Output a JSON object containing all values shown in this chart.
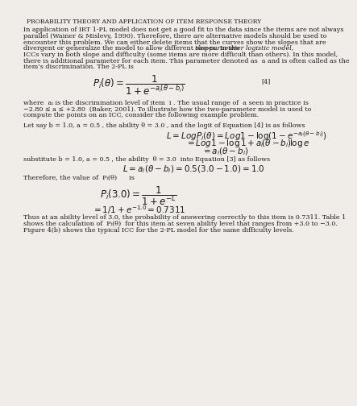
{
  "title": "PROBABILITY THEORY AND APPLICATION OF ITEM RESPONSE THEORY",
  "bg_color": "#f0ede8",
  "text_color": "#1a1a1a",
  "fs_title": 5.5,
  "fs_body": 5.8,
  "fs_eq": 8.5,
  "fs_eq_small": 7.5,
  "lm": 0.055,
  "rm": 0.945,
  "lh": 0.0158,
  "p1_lines": [
    "In application of IRT 1-PL model does not get a good fit to the data since the items are not always",
    "parallel (Wainer & Mislevy, 1990). Therefore, there are alternative models should be used to",
    "encounter this problem. We can either delete items that the curves show the slopes that are",
    "divergent or generalize the model to allow different slopes. In the",
    "two-parameter logistic model,",
    "ICCs vary in both slope and difficulty (some items are more difficult than others). In this model,",
    "there is additional parameter for each item. This parameter denoted as  a and is often called as the",
    "item’s discrimination. The 2-PL is"
  ],
  "p2_lines": [
    "where  aᵢ is the discrimination level of item  i . The usual range of  a seen in practice is",
    "−2.80 ≤ a ≤ +2.80  (Baker, 2001). To illustrate how the two-parameter model is used to",
    "compute the points on an ICC, consider the following example problem."
  ],
  "p3": "Let say b = 1.0, a = 0.5 , the ability θ = 3.0 , and the logit of Equation [4] is as follows",
  "p4": "substitute b = 1.0, a = 0.5 , the ability  θ = 3.0  into Equation [3] as follows",
  "p5": "Therefore, the value of  Pᵢ(θ)      is",
  "p6_lines": [
    "Thus at an ability level of 3.0, the probability of answering correctly to this item is 0.7311. Table 1",
    "shows the calculation of  Pᵢ(θ)  for this item at seven ability level that ranges from +3.0 to −3.0.",
    "Figure 4(b) shows the typical ICC for the 2-PL model for the same difficulty levels."
  ]
}
